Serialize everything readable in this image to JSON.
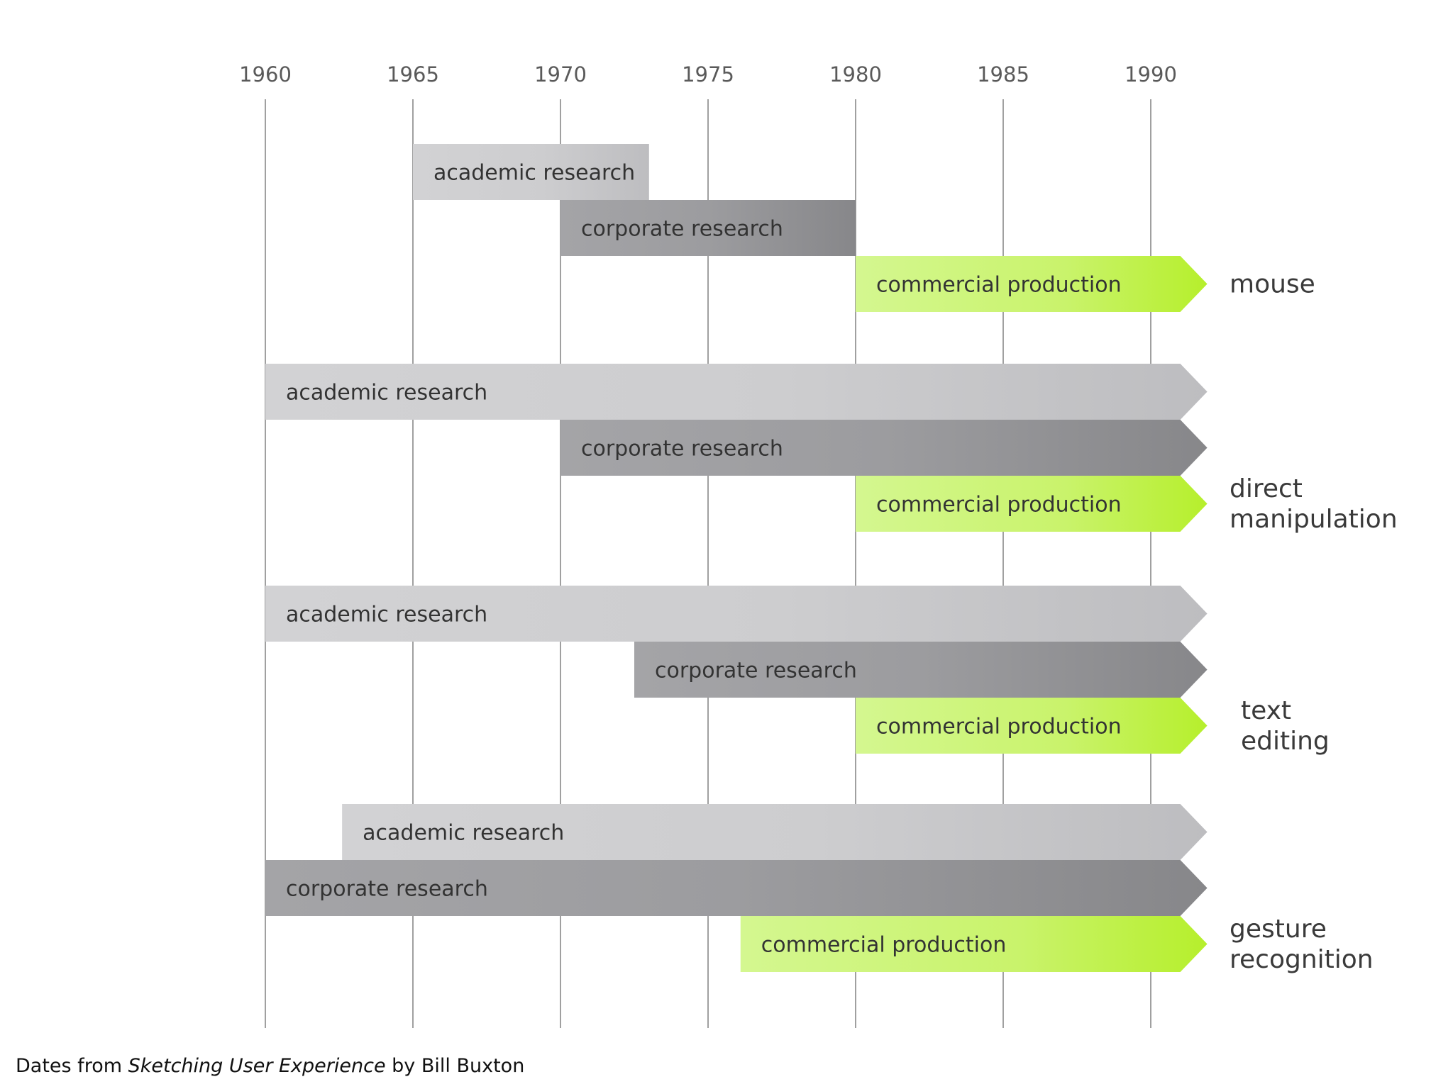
{
  "chart_data": {
    "type": "timeline",
    "title": "",
    "xlabel": "",
    "ylabel": "",
    "x_ticks": [
      1960,
      1965,
      1970,
      1975,
      1980,
      1985,
      1990
    ],
    "xlim": [
      1960,
      1991
    ],
    "grid": true,
    "legend": "none",
    "colors": {
      "academic": "#cfcfd1",
      "corporate": "#98989b",
      "commercial": "#c6f56a",
      "gridline": "#a0a0a0"
    },
    "groups": [
      {
        "label": [
          "mouse"
        ],
        "bars": [
          {
            "phase": "academic",
            "label": "academic research",
            "start": 1965,
            "end": 1973,
            "ongoing": false
          },
          {
            "phase": "corporate",
            "label": "corporate research",
            "start": 1970,
            "end": 1980,
            "ongoing": false
          },
          {
            "phase": "commercial",
            "label": "commercial production",
            "start": 1980,
            "end": 1991,
            "ongoing": true
          }
        ]
      },
      {
        "label": [
          "direct",
          "manipulation"
        ],
        "bars": [
          {
            "phase": "academic",
            "label": "academic research",
            "start": 1960,
            "end": 1991,
            "ongoing": true
          },
          {
            "phase": "corporate",
            "label": "corporate research",
            "start": 1970,
            "end": 1991,
            "ongoing": true
          },
          {
            "phase": "commercial",
            "label": "commercial production",
            "start": 1980,
            "end": 1991,
            "ongoing": true
          }
        ]
      },
      {
        "label": [
          "text",
          "editing"
        ],
        "bars": [
          {
            "phase": "academic",
            "label": "academic research",
            "start": 1960,
            "end": 1991,
            "ongoing": true
          },
          {
            "phase": "corporate",
            "label": "corporate research",
            "start": 1972.5,
            "end": 1991,
            "ongoing": true
          },
          {
            "phase": "commercial",
            "label": "commercial production",
            "start": 1980,
            "end": 1991,
            "ongoing": true
          }
        ]
      },
      {
        "label": [
          "gesture",
          "recognition"
        ],
        "bars": [
          {
            "phase": "academic",
            "label": "academic research",
            "start": 1962.6,
            "end": 1991,
            "ongoing": true
          },
          {
            "phase": "corporate",
            "label": "corporate research",
            "start": 1960,
            "end": 1991,
            "ongoing": true
          },
          {
            "phase": "commercial",
            "label": "commercial production",
            "start": 1976.1,
            "end": 1991,
            "ongoing": true
          }
        ]
      }
    ]
  },
  "caption": {
    "prefix": "Dates from ",
    "book_title": "Sketching User Experience",
    "suffix": " by Bill Buxton"
  }
}
